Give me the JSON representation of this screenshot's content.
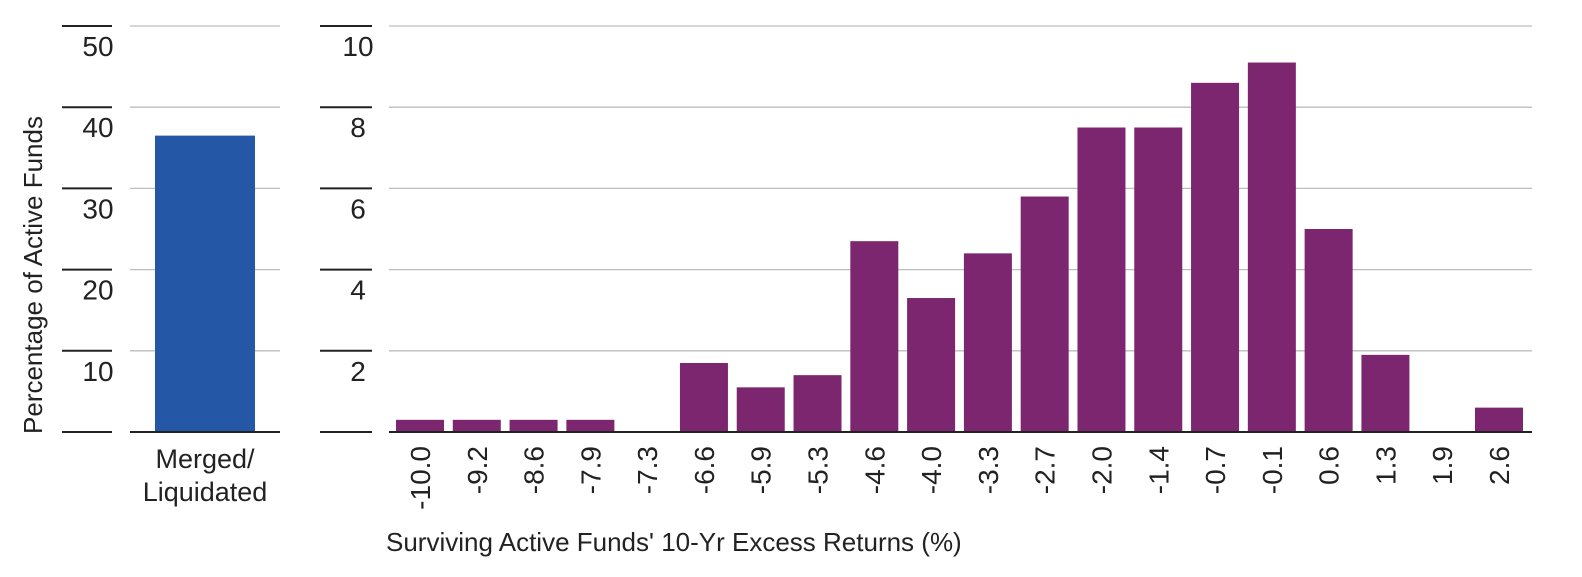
{
  "chart_data": [
    {
      "type": "bar",
      "categories": [
        "Merged/ Liquidated"
      ],
      "category_lines": [
        [
          "Merged/",
          "Liquidated"
        ]
      ],
      "values": [
        36.5
      ],
      "ylim": [
        0,
        50
      ],
      "yticks": [
        10,
        20,
        30,
        40,
        50
      ],
      "ylabel": "Percentage of Active Funds",
      "xlabel": "",
      "grid": true,
      "bar_color": "#2457a6"
    },
    {
      "type": "bar",
      "categories": [
        "-10.0",
        "-9.2",
        "-8.6",
        "-7.9",
        "-7.3",
        "-6.6",
        "-5.9",
        "-5.3",
        "-4.6",
        "-4.0",
        "-3.3",
        "-2.7",
        "-2.0",
        "-1.4",
        "-0.7",
        "-0.1",
        "0.6",
        "1.3",
        "1.9",
        "2.6"
      ],
      "values": [
        0.3,
        0.3,
        0.3,
        0.3,
        0.0,
        1.7,
        1.1,
        1.4,
        4.7,
        3.3,
        4.4,
        5.8,
        7.5,
        7.5,
        8.6,
        9.1,
        5.0,
        1.9,
        0.0,
        0.6
      ],
      "ylim": [
        0,
        10
      ],
      "yticks": [
        2,
        4,
        6,
        8,
        10
      ],
      "xlabel": "Surviving Active Funds' 10-Yr Excess Returns (%)",
      "ylabel": "",
      "grid": true,
      "bar_color": "#7b266e"
    }
  ]
}
